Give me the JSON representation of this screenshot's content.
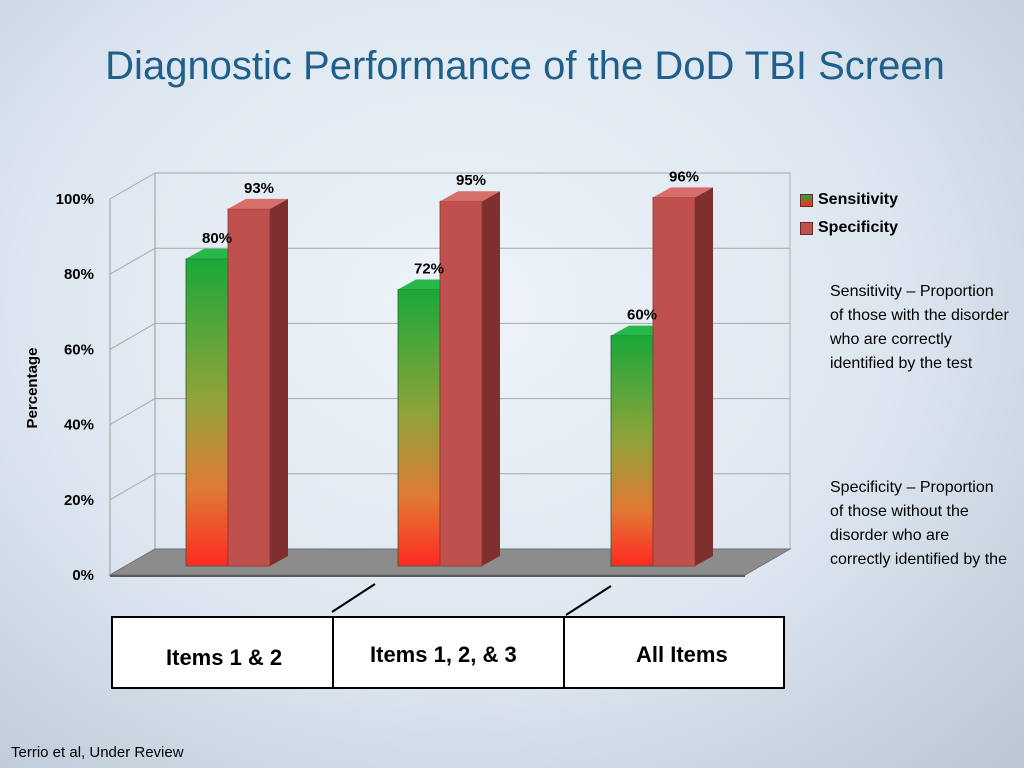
{
  "slide": {
    "title": "Diagnostic Performance of the DoD TBI Screen",
    "citation": "Terrio et al, Under Review",
    "definitions": {
      "sensitivity": "Sensitivity – Proportion of those with the disorder who are correctly identified by the test",
      "specificity": "Specificity – Proportion of those without the disorder who are correctly identified by the"
    },
    "groups": [
      "Items 1 & 2",
      "Items 1, 2, & 3",
      "All Items"
    ]
  },
  "colors": {
    "sensitivity_top": "#1aa83a",
    "sensitivity_bottom": "#ff2a22",
    "specificity": "#c0504d",
    "specificity_side": "#7f302e",
    "specificity_top": "#d86e69",
    "floor": "#8c8c8c"
  },
  "chart_data": {
    "type": "bar",
    "categories": [
      "Items 1 & 2",
      "Items 1, 2, & 3",
      "All Items"
    ],
    "series": [
      {
        "name": "Sensitivity",
        "values": [
          80,
          72,
          60
        ],
        "labels": [
          "80%",
          "72%",
          "60%"
        ]
      },
      {
        "name": "Specificity",
        "values": [
          93,
          95,
          96
        ],
        "labels": [
          "93%",
          "95%",
          "96%"
        ]
      }
    ],
    "ylabel": "Percentage",
    "ylim": [
      0,
      100
    ],
    "yticks": [
      "0%",
      "20%",
      "40%",
      "60%",
      "80%",
      "100%"
    ],
    "legend_position": "right",
    "grid": true,
    "style": "3d"
  }
}
